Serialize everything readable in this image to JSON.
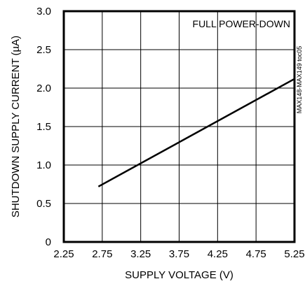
{
  "chart_data": {
    "type": "line",
    "annotation": "FULL POWER-DOWN",
    "side_id": "MAX148-MAX149 toc05",
    "xlabel": "SUPPLY VOLTAGE (V)",
    "ylabel": "SHUTDOWN SUPPLY CURRENT (µA)",
    "xlim": [
      2.25,
      5.25
    ],
    "ylim": [
      0,
      3.0
    ],
    "x_ticks": [
      2.25,
      2.75,
      3.25,
      3.75,
      4.25,
      4.75,
      5.25
    ],
    "x_tick_labels": [
      "2.25",
      "2.75",
      "3.25",
      "3.75",
      "4.25",
      "4.75",
      "5.25"
    ],
    "y_ticks": [
      0,
      0.5,
      1.0,
      1.5,
      2.0,
      2.5,
      3.0
    ],
    "y_tick_labels": [
      "0",
      "0.5",
      "1.0",
      "1.5",
      "2.0",
      "2.5",
      "3.0"
    ],
    "grid": true,
    "series": [
      {
        "x": [
          2.7,
          5.25
        ],
        "y": [
          0.72,
          2.12
        ]
      }
    ]
  }
}
